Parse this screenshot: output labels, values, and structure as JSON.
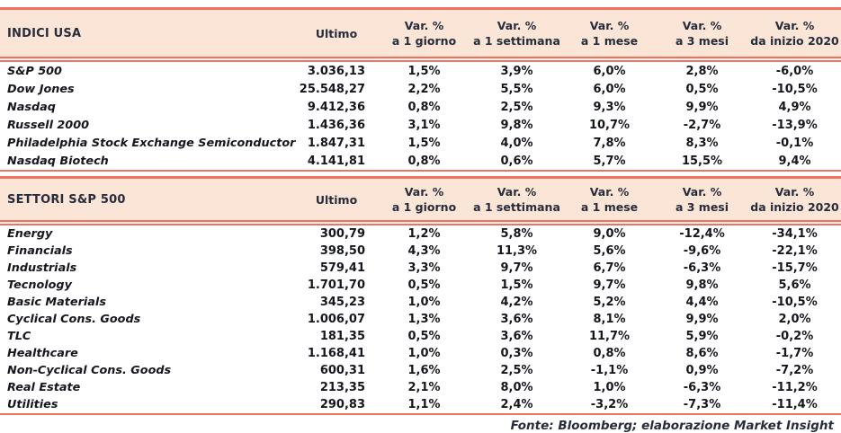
{
  "chart_data": {
    "type": "table",
    "style": {
      "accent_line": "#ED7360",
      "header_bg": "#FBE5D6",
      "header_text": "#272C3C",
      "body_text": "#15171E"
    },
    "tables": [
      {
        "title": "INDICI USA",
        "ultimo_label": "Ultimo",
        "var_label": "Var. %",
        "periods": [
          "a 1 giorno",
          "a 1 settimana",
          "a 1 mese",
          "a 3 mesi",
          "da inizio 2020"
        ],
        "rows": [
          {
            "name": "S&P 500",
            "ultimo": "3.036,13",
            "vars": [
              "1,5%",
              "3,9%",
              "6,0%",
              "2,8%",
              "-6,0%"
            ]
          },
          {
            "name": "Dow Jones",
            "ultimo": "25.548,27",
            "vars": [
              "2,2%",
              "5,5%",
              "6,0%",
              "0,5%",
              "-10,5%"
            ]
          },
          {
            "name": "Nasdaq",
            "ultimo": "9.412,36",
            "vars": [
              "0,8%",
              "2,5%",
              "9,3%",
              "9,9%",
              "4,9%"
            ]
          },
          {
            "name": "Russell 2000",
            "ultimo": "1.436,36",
            "vars": [
              "3,1%",
              "9,8%",
              "10,7%",
              "-2,7%",
              "-13,9%"
            ]
          },
          {
            "name": "Philadelphia Stock Exchange Semiconductor",
            "ultimo": "1.847,31",
            "vars": [
              "1,5%",
              "4,0%",
              "7,8%",
              "8,3%",
              "-0,1%"
            ]
          },
          {
            "name": "Nasdaq Biotech",
            "ultimo": "4.141,81",
            "vars": [
              "0,8%",
              "0,6%",
              "5,7%",
              "15,5%",
              "9,4%"
            ]
          }
        ]
      },
      {
        "title": "SETTORI S&P 500",
        "ultimo_label": "Ultimo",
        "var_label": "Var. %",
        "periods": [
          "a 1 giorno",
          "a 1 settimana",
          "a 1 mese",
          "a 3 mesi",
          "da inizio 2020"
        ],
        "rows": [
          {
            "name": "Energy",
            "ultimo": "300,79",
            "vars": [
              "1,2%",
              "5,8%",
              "9,0%",
              "-12,4%",
              "-34,1%"
            ]
          },
          {
            "name": "Financials",
            "ultimo": "398,50",
            "vars": [
              "4,3%",
              "11,3%",
              "5,6%",
              "-9,6%",
              "-22,1%"
            ]
          },
          {
            "name": "Industrials",
            "ultimo": "579,41",
            "vars": [
              "3,3%",
              "9,7%",
              "6,7%",
              "-6,3%",
              "-15,7%"
            ]
          },
          {
            "name": "Tecnology",
            "ultimo": "1.701,70",
            "vars": [
              "0,5%",
              "1,5%",
              "9,7%",
              "9,8%",
              "5,6%"
            ]
          },
          {
            "name": "Basic Materials",
            "ultimo": "345,23",
            "vars": [
              "1,0%",
              "4,2%",
              "5,2%",
              "4,4%",
              "-10,5%"
            ]
          },
          {
            "name": "Cyclical Cons. Goods",
            "ultimo": "1.006,07",
            "vars": [
              "1,3%",
              "3,6%",
              "8,1%",
              "9,9%",
              "2,0%"
            ]
          },
          {
            "name": "TLC",
            "ultimo": "181,35",
            "vars": [
              "0,5%",
              "3,6%",
              "11,7%",
              "5,9%",
              "-0,2%"
            ]
          },
          {
            "name": "Healthcare",
            "ultimo": "1.168,41",
            "vars": [
              "1,0%",
              "0,3%",
              "0,8%",
              "8,6%",
              "-1,7%"
            ]
          },
          {
            "name": "Non-Cyclical Cons. Goods",
            "ultimo": "600,31",
            "vars": [
              "1,6%",
              "2,5%",
              "-1,1%",
              "0,9%",
              "-7,2%"
            ]
          },
          {
            "name": "Real Estate",
            "ultimo": "213,35",
            "vars": [
              "2,1%",
              "8,0%",
              "1,0%",
              "-6,3%",
              "-11,2%"
            ]
          },
          {
            "name": "Utilities",
            "ultimo": "290,83",
            "vars": [
              "1,1%",
              "2,4%",
              "-3,2%",
              "-7,3%",
              "-11,4%"
            ]
          }
        ]
      }
    ],
    "source": "Fonte: Bloomberg; elaborazione Market Insight"
  }
}
